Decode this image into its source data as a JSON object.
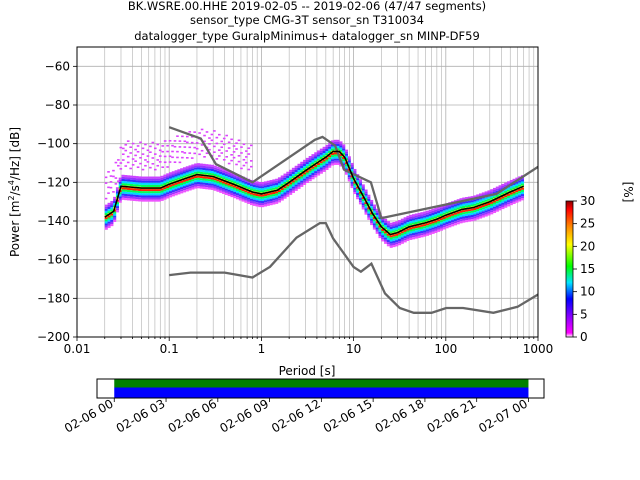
{
  "chart_data": [
    {
      "type": "heatmap",
      "title_lines": [
        "BK.WSRE.00.HHE   2019-02-05 -- 2019-02-06  (47/47 segments)",
        "sensor_type CMG-3T sensor_sn T310034",
        "datalogger_type GuralpMinimus+ datalogger_sn MINP-DF59"
      ],
      "xlabel": "Period [s]",
      "ylabel_parts": [
        "Power [m",
        "2",
        "/s",
        "4",
        "/Hz] [dB]"
      ],
      "x_scale": "log",
      "xlim": [
        0.01,
        1000
      ],
      "ylim": [
        -200,
        -50
      ],
      "x_ticks": [
        {
          "value": 0.01,
          "label": "0.01"
        },
        {
          "value": 0.1,
          "label": "0.1"
        },
        {
          "value": 1,
          "label": "1"
        },
        {
          "value": 10,
          "label": "10"
        },
        {
          "value": 100,
          "label": "100"
        },
        {
          "value": 1000,
          "label": "1000"
        }
      ],
      "y_ticks": [
        {
          "value": -60,
          "label": "−60"
        },
        {
          "value": -80,
          "label": "−80"
        },
        {
          "value": -100,
          "label": "−100"
        },
        {
          "value": -120,
          "label": "−120"
        },
        {
          "value": -140,
          "label": "−140"
        },
        {
          "value": -160,
          "label": "−160"
        },
        {
          "value": -180,
          "label": "−180"
        },
        {
          "value": -200,
          "label": "−200"
        }
      ],
      "grid": true,
      "high_noise_model": {
        "x": [
          0.1,
          0.22,
          0.32,
          0.8,
          3.8,
          4.6,
          6.3,
          7.9,
          15.4,
          20,
          354.8,
          1000
        ],
        "y": [
          -91.5,
          -97.4,
          -110.5,
          -120.0,
          -98.0,
          -96.5,
          -101.0,
          -113.5,
          -120.0,
          -138.5,
          -126.0,
          -112.0
        ]
      },
      "low_noise_model": {
        "x": [
          0.1,
          0.17,
          0.4,
          0.8,
          1.24,
          2.4,
          4.3,
          5.0,
          6.0,
          10.0,
          12.0,
          15.6,
          21.9,
          31.6,
          45.0,
          70.0,
          101.0,
          154.0,
          328.0,
          600.0,
          1000.0
        ],
        "y": [
          -168.0,
          -166.7,
          -166.7,
          -169.2,
          -163.7,
          -148.6,
          -141.1,
          -141.1,
          -149.0,
          -163.8,
          -166.2,
          -162.1,
          -177.5,
          -185.0,
          -187.5,
          -187.5,
          -185.0,
          -185.0,
          -187.5,
          -184.4,
          -178.0
        ]
      },
      "mode_curve": {
        "x": [
          0.02,
          0.025,
          0.03,
          0.05,
          0.08,
          0.1,
          0.15,
          0.2,
          0.3,
          0.5,
          0.8,
          1.0,
          1.5,
          2.0,
          3.0,
          4.0,
          5.0,
          6.0,
          7.0,
          8.0,
          10.0,
          13.0,
          16.0,
          20.0,
          25.0,
          30.0,
          40.0,
          60.0,
          80.0,
          100.0,
          150.0,
          200.0,
          300.0,
          500.0,
          700.0
        ],
        "y": [
          -138,
          -135,
          -122,
          -123,
          -123,
          -121,
          -118,
          -116,
          -117,
          -121,
          -125,
          -126,
          -124,
          -120,
          -114,
          -110,
          -107,
          -104,
          -104,
          -107,
          -118,
          -128,
          -136,
          -143,
          -147,
          -146,
          -143,
          -141,
          -139,
          -137,
          -134,
          -133,
          -130,
          -125,
          -122
        ]
      },
      "psd_heatmap_note_values": {
        "band_upper_offset_db": 6,
        "band_lower_offset_db": 7
      }
    },
    {
      "type": "colorbar",
      "label": "[%]",
      "range": [
        0,
        30
      ],
      "ticks": [
        "0",
        "5",
        "10",
        "15",
        "20",
        "25",
        "30"
      ],
      "stops": [
        "#ffffff",
        "#ff00ff",
        "#8800ff",
        "#0000ff",
        "#00e5ff",
        "#00ff00",
        "#ffff00",
        "#ff8000",
        "#ff0000",
        "#8b0000"
      ]
    },
    {
      "type": "timeline",
      "x_ticks": [
        "02-06 00",
        "02-06 03",
        "02-06 06",
        "02-06 09",
        "02-06 12",
        "02-06 15",
        "02-06 18",
        "02-06 21",
        "02-07 00"
      ],
      "coverage_start_hours": 0,
      "coverage_end_hours": 24,
      "axis_start_hours": -1,
      "axis_end_hours": 24.9,
      "colors": {
        "data": "#0000ff",
        "processed": "#008000"
      }
    }
  ]
}
